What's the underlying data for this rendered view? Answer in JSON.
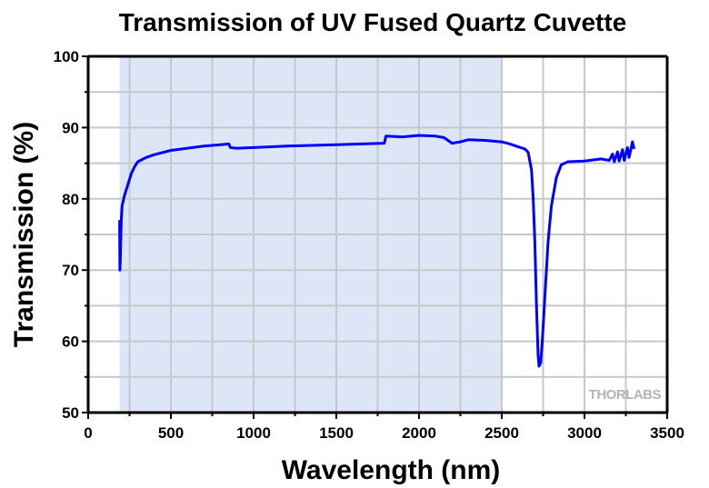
{
  "chart_data": {
    "type": "line",
    "title": "Transmission of UV Fused Quartz Cuvette",
    "xlabel": "Wavelength (nm)",
    "ylabel": "Transmission (%)",
    "xlim": [
      0,
      3500
    ],
    "ylim": [
      50,
      100
    ],
    "xticks": [
      0,
      500,
      1000,
      1500,
      2000,
      2500,
      3000,
      3500
    ],
    "yticks": [
      50,
      60,
      70,
      80,
      90,
      100
    ],
    "grid": true,
    "shaded_range": [
      190,
      2500
    ],
    "colors": {
      "line": "#0000ff",
      "shade": "#dde6f7",
      "grid": "#c8c8c8"
    },
    "watermark": "THORLABS",
    "series": [
      {
        "x": [
          190,
          192,
          195,
          198,
          200,
          205,
          220,
          240,
          260,
          280,
          300,
          350,
          400,
          500,
          600,
          700,
          800,
          850,
          860,
          900,
          1000,
          1200,
          1500,
          1790,
          1800,
          1900,
          2000,
          2100,
          2150,
          2200,
          2250,
          2300,
          2400,
          2500,
          2550,
          2600,
          2640,
          2660,
          2680,
          2690,
          2700,
          2710,
          2720,
          2725,
          2735,
          2745,
          2760,
          2780,
          2800,
          2830,
          2860,
          2900,
          3000,
          3100,
          3150,
          3170,
          3180,
          3200,
          3210,
          3230,
          3240,
          3260,
          3270,
          3290,
          3300
        ],
        "y": [
          77,
          70,
          72,
          75,
          77,
          79,
          80.5,
          82,
          83.5,
          84.5,
          85.2,
          85.8,
          86.2,
          86.8,
          87.1,
          87.4,
          87.6,
          87.7,
          87.2,
          87.1,
          87.2,
          87.4,
          87.6,
          87.8,
          88.8,
          88.7,
          88.9,
          88.8,
          88.6,
          87.8,
          88.0,
          88.3,
          88.2,
          88.0,
          87.7,
          87.3,
          87.0,
          86.5,
          84,
          80,
          74,
          65,
          58,
          56.5,
          57,
          60,
          66,
          74,
          79,
          83,
          84.8,
          85.2,
          85.3,
          85.6,
          85.4,
          86.3,
          85.2,
          86.6,
          85.3,
          86.9,
          85.4,
          87.2,
          85.8,
          88,
          87
        ]
      }
    ]
  }
}
